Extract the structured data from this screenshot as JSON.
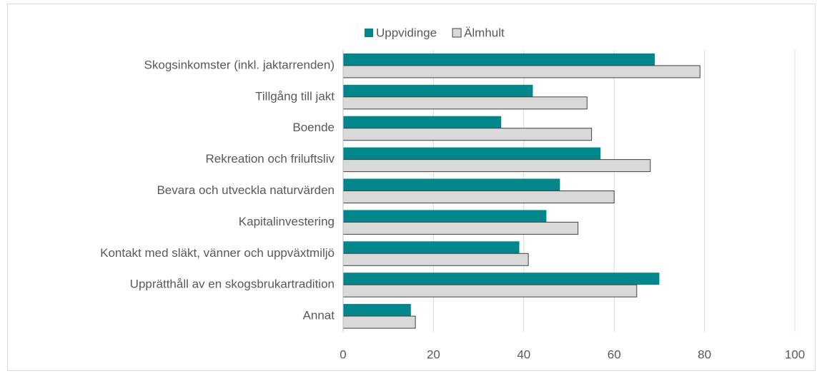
{
  "chart_data": {
    "type": "hbar",
    "categories": [
      "Skogsinkomster (inkl. jaktarrenden)",
      "Tillgång till jakt",
      "Boende",
      "Rekreation och friluftsliv",
      "Bevara och utveckla naturvärden",
      "Kapitalinvestering",
      "Kontakt med släkt, vänner och uppväxtmiljö",
      "Upprätthåll av en skogsbrukartradition",
      "Annat"
    ],
    "series": [
      {
        "name": "Uppvidinge",
        "color": "#00868b",
        "values": [
          69,
          42,
          35,
          57,
          48,
          45,
          39,
          70,
          15
        ]
      },
      {
        "name": "Älmhult",
        "color": "#d9d9d9",
        "values": [
          79,
          54,
          55,
          68,
          60,
          52,
          41,
          65,
          16
        ]
      }
    ],
    "xlim": [
      0,
      100
    ],
    "xticks": [
      0,
      20,
      40,
      60,
      80,
      100
    ],
    "grid": true,
    "legend": "top"
  }
}
